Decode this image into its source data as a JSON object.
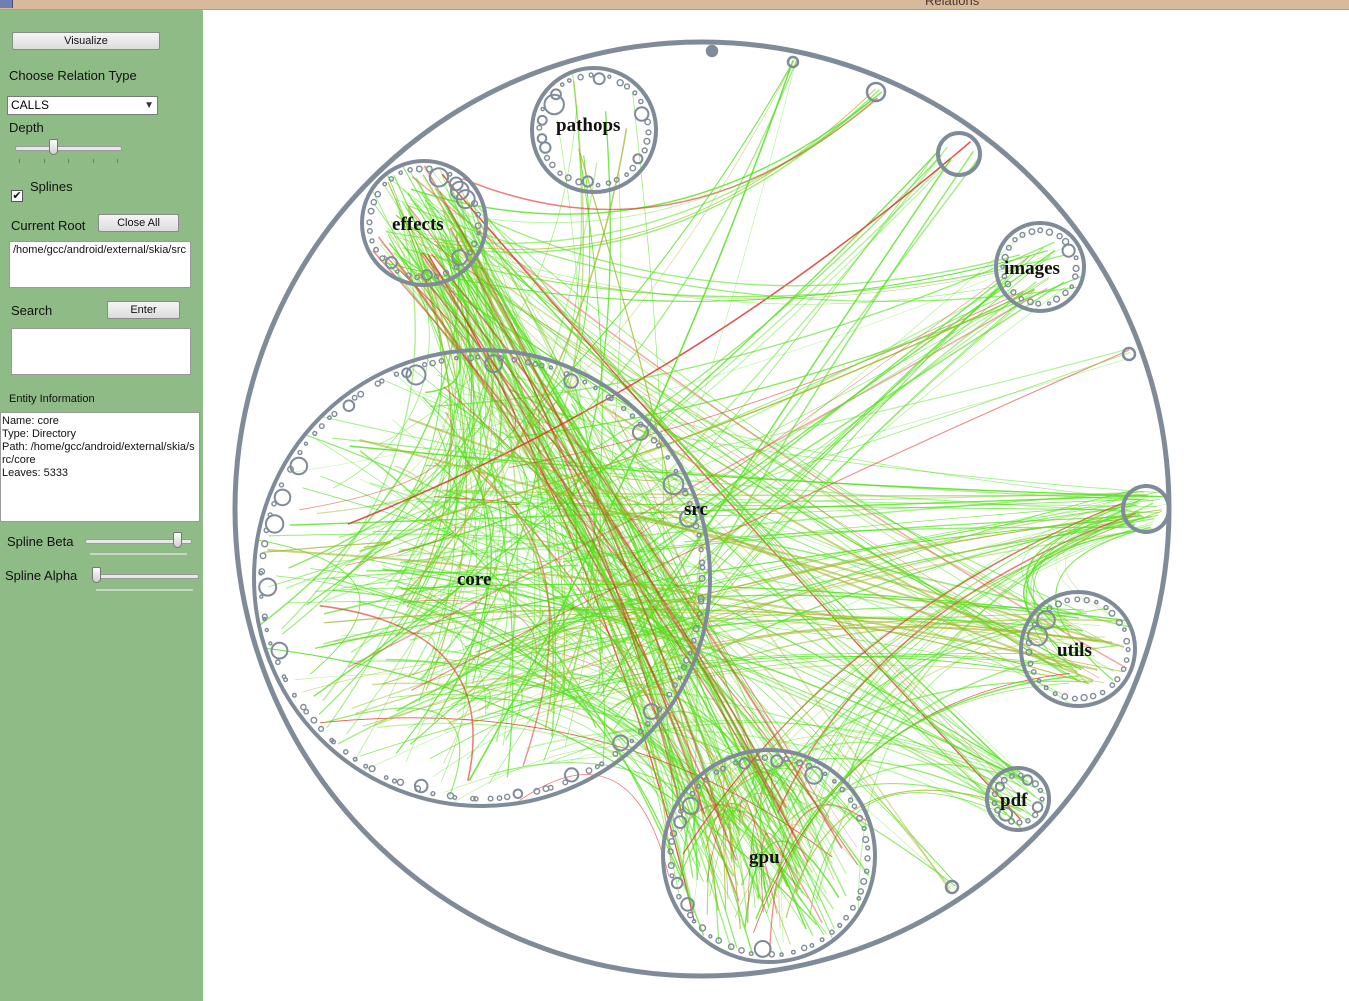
{
  "window": {
    "title": "Relations"
  },
  "sidebar": {
    "visualize_label": "Visualize",
    "relation_type_label": "Choose Relation Type",
    "relation_type_value": "CALLS",
    "depth_label": "Depth",
    "depth_value_fraction": 0.35,
    "splines_label": "Splines",
    "splines_checked": true,
    "current_root_label": "Current Root",
    "close_all_label": "Close All",
    "current_root_value": "/home/gcc/android/external/skia/src",
    "search_label": "Search",
    "enter_label": "Enter",
    "search_value": "",
    "entity_info_label": "Entity Information",
    "entity_info": {
      "name": "Name: core",
      "type": "Type: Directory",
      "path": "Path: /home/gcc/android/external/skia/src/core",
      "leaves": "Leaves: 5333"
    },
    "spline_beta_label": "Spline Beta",
    "spline_beta_fraction": 0.9,
    "spline_alpha_label": "Spline Alpha",
    "spline_alpha_fraction": 0.0
  },
  "graph": {
    "root_label": "src",
    "nodes": [
      {
        "label": "pathops"
      },
      {
        "label": "effects"
      },
      {
        "label": "images"
      },
      {
        "label": "core"
      },
      {
        "label": "utils"
      },
      {
        "label": "pdf"
      },
      {
        "label": "gpu"
      }
    ],
    "colors": {
      "ring": "#7f8b99",
      "edge_light": "#52e01c",
      "edge_mid": "#a3b52a",
      "edge_hot": "#e0312a"
    }
  }
}
